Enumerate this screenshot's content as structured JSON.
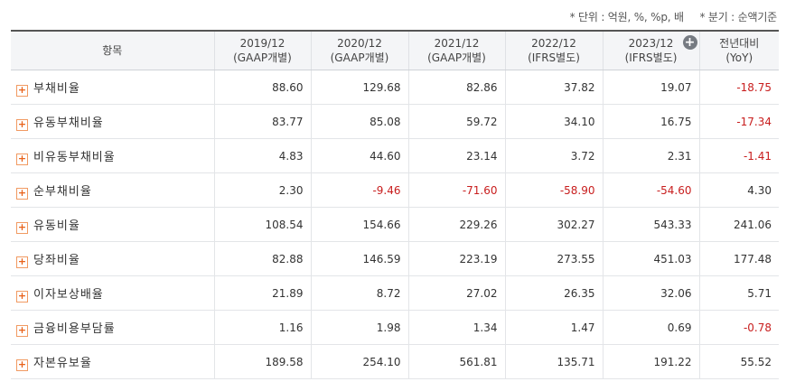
{
  "notes": {
    "unit": "* 단위 : 억원, %, %p, 배",
    "period": "* 분기 : 순액기준"
  },
  "columns": [
    {
      "line1": "항목",
      "line2": ""
    },
    {
      "line1": "2019/12",
      "line2": "(GAAP개별)"
    },
    {
      "line1": "2020/12",
      "line2": "(GAAP개별)"
    },
    {
      "line1": "2021/12",
      "line2": "(GAAP개별)"
    },
    {
      "line1": "2022/12",
      "line2": "(IFRS별도)"
    },
    {
      "line1": "2023/12",
      "line2": "(IFRS별도)"
    },
    {
      "line1": "전년대비",
      "line2": "(YoY)"
    }
  ],
  "add_column_icon": "plus-circle-icon",
  "expand_icon": "plus-square-icon",
  "colors": {
    "negative": "#c81e1e",
    "accent": "#e8621a"
  },
  "rows": [
    {
      "label": "부채비율",
      "values": [
        "88.60",
        "129.68",
        "82.86",
        "37.82",
        "19.07",
        "-18.75"
      ]
    },
    {
      "label": "유동부채비율",
      "values": [
        "83.77",
        "85.08",
        "59.72",
        "34.10",
        "16.75",
        "-17.34"
      ]
    },
    {
      "label": "비유동부채비율",
      "values": [
        "4.83",
        "44.60",
        "23.14",
        "3.72",
        "2.31",
        "-1.41"
      ]
    },
    {
      "label": "순부채비율",
      "values": [
        "2.30",
        "-9.46",
        "-71.60",
        "-58.90",
        "-54.60",
        "4.30"
      ]
    },
    {
      "label": "유동비율",
      "values": [
        "108.54",
        "154.66",
        "229.26",
        "302.27",
        "543.33",
        "241.06"
      ]
    },
    {
      "label": "당좌비율",
      "values": [
        "82.88",
        "146.59",
        "223.19",
        "273.55",
        "451.03",
        "177.48"
      ]
    },
    {
      "label": "이자보상배율",
      "values": [
        "21.89",
        "8.72",
        "27.02",
        "26.35",
        "32.06",
        "5.71"
      ]
    },
    {
      "label": "금융비용부담률",
      "values": [
        "1.16",
        "1.98",
        "1.34",
        "1.47",
        "0.69",
        "-0.78"
      ]
    },
    {
      "label": "자본유보율",
      "values": [
        "189.58",
        "254.10",
        "561.81",
        "135.71",
        "191.22",
        "55.52"
      ]
    }
  ]
}
